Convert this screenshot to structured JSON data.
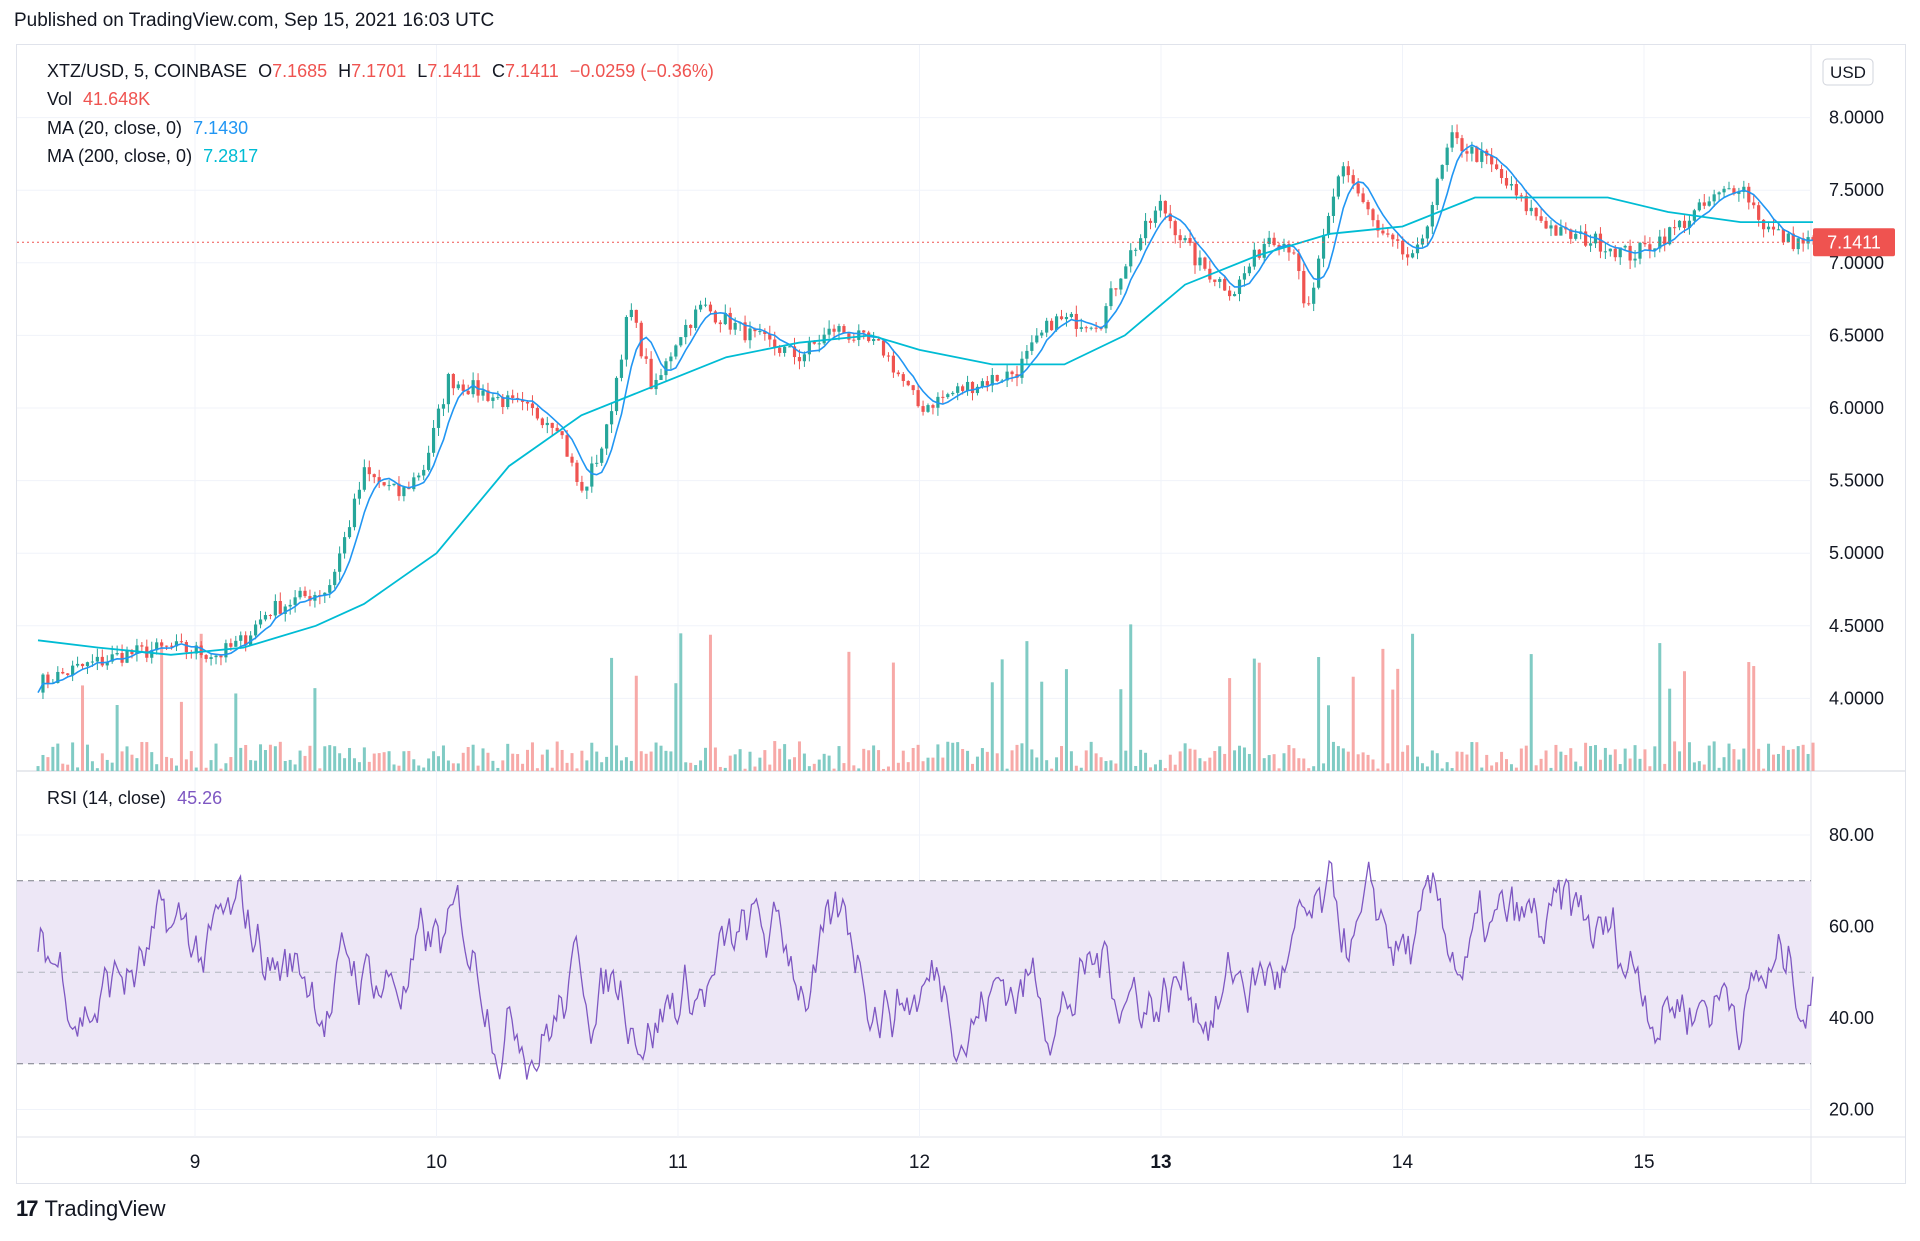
{
  "header": {
    "published": "Published on TradingView.com, Sep 15, 2021 16:03 UTC"
  },
  "legend": {
    "symbol": "XTZ/USD, 5, COINBASE",
    "open_label": "O",
    "open": "7.1685",
    "high_label": "H",
    "high": "7.1701",
    "low_label": "L",
    "low": "7.1411",
    "close_label": "C",
    "close": "7.1411",
    "change": "−0.0259 (−0.36%)",
    "vol_label": "Vol",
    "vol": "41.648K",
    "ma20_label": "MA (20, close, 0)",
    "ma20": "7.1430",
    "ma200_label": "MA (200, close, 0)",
    "ma200": "7.2817",
    "rsi_label": "RSI (14, close)",
    "rsi": "45.26"
  },
  "price_axis": {
    "currency": "USD",
    "last_price": "7.1411"
  },
  "footer": {
    "brand": "TradingView",
    "logo_mark": "17"
  },
  "colors": {
    "up": "#26a69a",
    "down": "#ef5350",
    "ma20": "#2196f3",
    "ma200": "#00bcd4",
    "rsi": "#7e57c2",
    "rsi_band": "#ede7f6",
    "grid": "#f0f3fa"
  },
  "chart_data": [
    {
      "type": "candlestick",
      "title": "XTZ/USD, 5, COINBASE",
      "xlabel": "",
      "ylabel": "",
      "x_ticks": [
        "9",
        "10",
        "11",
        "12",
        "13",
        "14",
        "15"
      ],
      "y_ticks": [
        "8.0000",
        "7.5000",
        "7.0000",
        "6.5000",
        "6.0000",
        "5.5000",
        "5.0000",
        "4.5000",
        "4.0000"
      ],
      "ylim": [
        3.5,
        8.5
      ],
      "grid": true,
      "series": [
        {
          "name": "MA (20, close, 0)",
          "last": 7.143
        },
        {
          "name": "MA (200, close, 0)",
          "last": 7.2817
        }
      ],
      "close_path": [
        [
          8.35,
          4.1
        ],
        [
          8.5,
          4.2
        ],
        [
          8.7,
          4.3
        ],
        [
          8.9,
          4.35
        ],
        [
          9.1,
          4.3
        ],
        [
          9.2,
          4.4
        ],
        [
          9.3,
          4.6
        ],
        [
          9.45,
          4.7
        ],
        [
          9.55,
          4.75
        ],
        [
          9.62,
          5.1
        ],
        [
          9.7,
          5.55
        ],
        [
          9.85,
          5.4
        ],
        [
          9.95,
          5.6
        ],
        [
          10.05,
          6.2
        ],
        [
          10.2,
          6.1
        ],
        [
          10.35,
          6.0
        ],
        [
          10.5,
          5.9
        ],
        [
          10.6,
          5.4
        ],
        [
          10.7,
          5.8
        ],
        [
          10.8,
          6.7
        ],
        [
          10.9,
          6.1
        ],
        [
          11.0,
          6.5
        ],
        [
          11.1,
          6.7
        ],
        [
          11.3,
          6.5
        ],
        [
          11.5,
          6.35
        ],
        [
          11.65,
          6.55
        ],
        [
          11.85,
          6.4
        ],
        [
          12.0,
          6.0
        ],
        [
          12.2,
          6.15
        ],
        [
          12.4,
          6.25
        ],
        [
          12.55,
          6.6
        ],
        [
          12.75,
          6.6
        ],
        [
          12.85,
          7.0
        ],
        [
          13.0,
          7.4
        ],
        [
          13.15,
          7.0
        ],
        [
          13.3,
          6.8
        ],
        [
          13.45,
          7.2
        ],
        [
          13.55,
          7.1
        ],
        [
          13.6,
          6.6
        ],
        [
          13.75,
          7.7
        ],
        [
          13.9,
          7.2
        ],
        [
          14.05,
          7.0
        ],
        [
          14.2,
          7.85
        ],
        [
          14.35,
          7.7
        ],
        [
          14.5,
          7.4
        ],
        [
          14.65,
          7.2
        ],
        [
          14.8,
          7.15
        ],
        [
          14.95,
          7.05
        ],
        [
          15.1,
          7.2
        ],
        [
          15.3,
          7.45
        ],
        [
          15.4,
          7.55
        ],
        [
          15.5,
          7.25
        ],
        [
          15.6,
          7.15
        ],
        [
          15.7,
          7.14
        ]
      ],
      "ma200_path": [
        [
          8.35,
          4.4
        ],
        [
          8.6,
          4.35
        ],
        [
          8.9,
          4.3
        ],
        [
          9.2,
          4.35
        ],
        [
          9.5,
          4.5
        ],
        [
          9.7,
          4.65
        ],
        [
          10.0,
          5.0
        ],
        [
          10.3,
          5.6
        ],
        [
          10.6,
          5.95
        ],
        [
          10.9,
          6.15
        ],
        [
          11.2,
          6.35
        ],
        [
          11.5,
          6.45
        ],
        [
          11.8,
          6.5
        ],
        [
          12.0,
          6.4
        ],
        [
          12.3,
          6.3
        ],
        [
          12.6,
          6.3
        ],
        [
          12.85,
          6.5
        ],
        [
          13.1,
          6.85
        ],
        [
          13.4,
          7.05
        ],
        [
          13.7,
          7.2
        ],
        [
          14.0,
          7.25
        ],
        [
          14.3,
          7.45
        ],
        [
          14.6,
          7.45
        ],
        [
          14.85,
          7.45
        ],
        [
          15.1,
          7.35
        ],
        [
          15.4,
          7.28
        ],
        [
          15.7,
          7.28
        ]
      ],
      "volume": {
        "last": "41.648K"
      }
    },
    {
      "type": "line",
      "title": "RSI (14, close)",
      "x_ticks": [
        "9",
        "10",
        "11",
        "12",
        "13",
        "14",
        "15"
      ],
      "y_ticks": [
        "80.00",
        "60.00",
        "40.00",
        "20.00"
      ],
      "ylim": [
        14,
        94
      ],
      "bands": {
        "upper": 70,
        "middle": 50,
        "lower": 30
      },
      "series": [
        {
          "name": "RSI (14, close)",
          "last": 45.26
        }
      ]
    }
  ]
}
